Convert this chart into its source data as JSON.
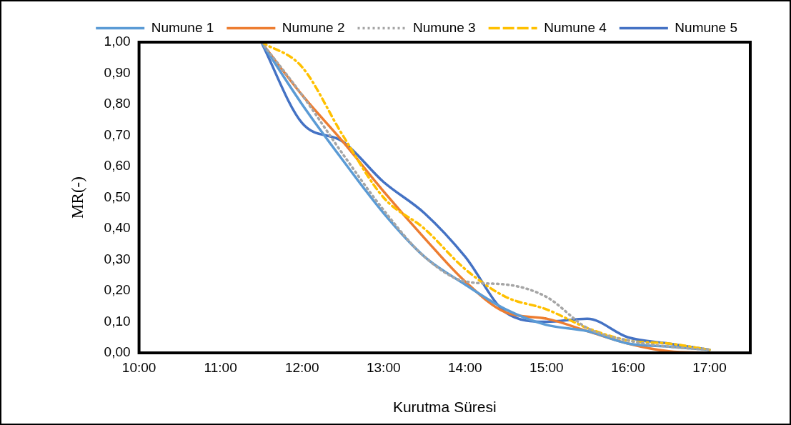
{
  "chart_data": {
    "type": "line",
    "xlabel": "Kurutma Süresi",
    "ylabel": "MR(-)",
    "x": [
      11.5,
      12,
      12.5,
      13,
      13.5,
      14,
      14.5,
      15,
      15.5,
      16,
      16.5,
      17
    ],
    "series": [
      {
        "name": "Numune 1",
        "color": "#5b9bd5",
        "line_style": "solid",
        "values": [
          1.0,
          0.8,
          0.62,
          0.45,
          0.31,
          0.22,
          0.14,
          0.09,
          0.07,
          0.03,
          0.02,
          0.01
        ]
      },
      {
        "name": "Numune 2",
        "color": "#ed7d31",
        "line_style": "solid",
        "values": [
          1.0,
          0.83,
          0.68,
          0.52,
          0.37,
          0.23,
          0.13,
          0.11,
          0.07,
          0.03,
          0.005,
          0.0
        ]
      },
      {
        "name": "Numune 3",
        "color": "#a5a5a5",
        "line_style": "dotted",
        "values": [
          1.0,
          0.83,
          0.64,
          0.46,
          0.31,
          0.23,
          0.22,
          0.18,
          0.08,
          0.04,
          0.02,
          0.01
        ]
      },
      {
        "name": "Numune 4",
        "color": "#ffc000",
        "line_style": "dashdot",
        "values": [
          1.0,
          0.92,
          0.7,
          0.5,
          0.4,
          0.27,
          0.18,
          0.14,
          0.08,
          0.04,
          0.03,
          0.01
        ]
      },
      {
        "name": "Numune 5",
        "color": "#4472c4",
        "line_style": "solid",
        "values": [
          1.0,
          0.74,
          0.68,
          0.55,
          0.45,
          0.31,
          0.13,
          0.1,
          0.11,
          0.05,
          0.03,
          0.01
        ]
      }
    ],
    "xlim": [
      10,
      17.5
    ],
    "xticks": [
      {
        "value": 10,
        "label": "10:00"
      },
      {
        "value": 11,
        "label": "11:00"
      },
      {
        "value": 12,
        "label": "12:00"
      },
      {
        "value": 13,
        "label": "13:00"
      },
      {
        "value": 14,
        "label": "14:00"
      },
      {
        "value": 15,
        "label": "15:00"
      },
      {
        "value": 16,
        "label": "16:00"
      },
      {
        "value": 17,
        "label": "17:00"
      }
    ],
    "ylim": [
      0,
      1
    ],
    "yticks": [
      {
        "value": 0,
        "label": "0,00"
      },
      {
        "value": 0.1,
        "label": "0,10"
      },
      {
        "value": 0.2,
        "label": "0,20"
      },
      {
        "value": 0.3,
        "label": "0,30"
      },
      {
        "value": 0.4,
        "label": "0,40"
      },
      {
        "value": 0.5,
        "label": "0,50"
      },
      {
        "value": 0.6,
        "label": "0,60"
      },
      {
        "value": 0.7,
        "label": "0,70"
      },
      {
        "value": 0.8,
        "label": "0,80"
      },
      {
        "value": 0.9,
        "label": "0,90"
      },
      {
        "value": 1,
        "label": "1,00"
      }
    ],
    "grid": false,
    "legend": "top",
    "marker": "none"
  }
}
